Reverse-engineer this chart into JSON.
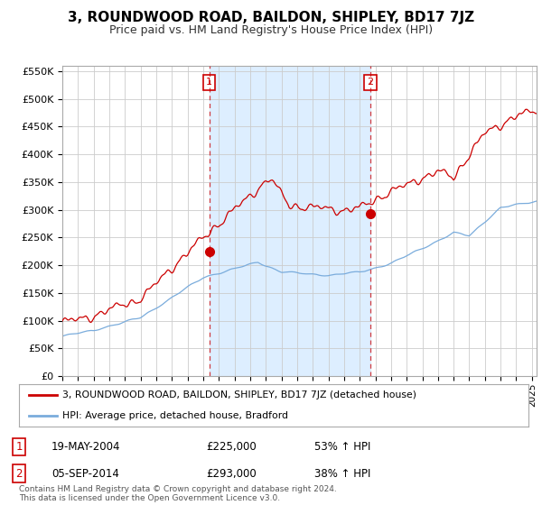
{
  "title": "3, ROUNDWOOD ROAD, BAILDON, SHIPLEY, BD17 7JZ",
  "subtitle": "Price paid vs. HM Land Registry's House Price Index (HPI)",
  "ylabel_ticks": [
    "£0",
    "£50K",
    "£100K",
    "£150K",
    "£200K",
    "£250K",
    "£300K",
    "£350K",
    "£400K",
    "£450K",
    "£500K",
    "£550K"
  ],
  "ytick_values": [
    0,
    50000,
    100000,
    150000,
    200000,
    250000,
    300000,
    350000,
    400000,
    450000,
    500000,
    550000
  ],
  "ylim": [
    0,
    560000
  ],
  "xlim_start": 1995.0,
  "xlim_end": 2025.3,
  "hpi_color": "#7aacdc",
  "price_color": "#cc0000",
  "shade_color": "#ddeeff",
  "purchase1_x": 2004.38,
  "purchase1_y": 225000,
  "purchase2_x": 2014.67,
  "purchase2_y": 293000,
  "legend_label1": "3, ROUNDWOOD ROAD, BAILDON, SHIPLEY, BD17 7JZ (detached house)",
  "legend_label2": "HPI: Average price, detached house, Bradford",
  "table_row1": [
    "1",
    "19-MAY-2004",
    "£225,000",
    "53% ↑ HPI"
  ],
  "table_row2": [
    "2",
    "05-SEP-2014",
    "£293,000",
    "38% ↑ HPI"
  ],
  "footnote": "Contains HM Land Registry data © Crown copyright and database right 2024.\nThis data is licensed under the Open Government Licence v3.0.",
  "background_color": "#ffffff",
  "grid_color": "#cccccc"
}
